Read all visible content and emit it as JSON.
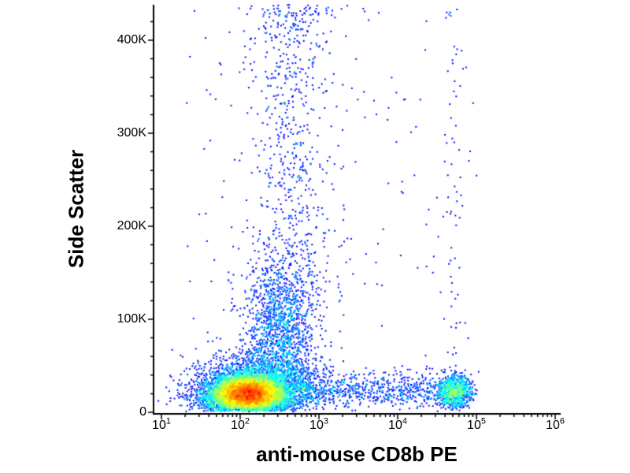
{
  "chart_data": {
    "type": "scatter",
    "subtype": "flow-cytometry-pseudocolor-density-dot-plot",
    "title": "",
    "xlabel": "anti-mouse CD8b PE",
    "ylabel": "Side Scatter",
    "colormap": "jet-density (blue=low, green, yellow, red=high)",
    "background_color": "#ffffff",
    "axis_color": "#000000",
    "x_axis": {
      "scale": "log10",
      "min_exponent": 1,
      "max_exponent": 6,
      "tick_base": "10",
      "tick_exponents": [
        "1",
        "2",
        "3",
        "4",
        "5",
        "6"
      ]
    },
    "y_axis": {
      "scale": "linear",
      "min": 0,
      "max": 445000,
      "minor_step": 20000,
      "tick_labels": [
        "0",
        "100K",
        "200K",
        "300K",
        "400K"
      ],
      "tick_values": [
        0,
        100000,
        200000,
        300000,
        400000
      ]
    },
    "populations": [
      {
        "name": "negative-lymphocyte-core",
        "count": 9000,
        "x": {
          "dist": "gauss",
          "log10_mean": 2.1,
          "log10_sd": 0.21
        },
        "y": {
          "dist": "gauss",
          "mean": 20000,
          "sd": 9000,
          "min": 1500,
          "max": 75000
        }
      },
      {
        "name": "negative-halo",
        "count": 2600,
        "x": {
          "dist": "gauss",
          "log10_mean": 2.22,
          "log10_sd": 0.4
        },
        "y": {
          "dist": "gauss",
          "mean": 26000,
          "sd": 17000,
          "min": 800,
          "max": 95000
        }
      },
      {
        "name": "left-debris",
        "count": 260,
        "x": {
          "dist": "gauss",
          "log10_mean": 1.72,
          "log10_sd": 0.26
        },
        "y": {
          "dist": "gauss",
          "mean": 14000,
          "sd": 9000,
          "min": 800,
          "max": 60000
        }
      },
      {
        "name": "monocyte-cloud",
        "count": 1500,
        "x": {
          "dist": "gauss",
          "log10_mean": 2.5,
          "log10_sd": 0.23
        },
        "y": {
          "dist": "gauss",
          "mean": 85000,
          "sd": 40000,
          "min": 35000,
          "max": 230000
        }
      },
      {
        "name": "vertical-plume",
        "count": 650,
        "x": {
          "dist": "gauss",
          "log10_mean": 2.65,
          "log10_sd": 0.26
        },
        "y": {
          "dist": "uniform",
          "min": 120000,
          "max": 445000
        }
      },
      {
        "name": "low-band-right",
        "count": 650,
        "x": {
          "dist": "uniform",
          "log10_min": 2.6,
          "log10_max": 4.45
        },
        "y": {
          "dist": "gauss",
          "mean": 24000,
          "sd": 10000,
          "min": 1500,
          "max": 60000
        }
      },
      {
        "name": "cd8b-positive",
        "count": 950,
        "x": {
          "dist": "gauss",
          "log10_mean": 4.72,
          "log10_sd": 0.12
        },
        "y": {
          "dist": "gauss",
          "mean": 22000,
          "sd": 9000,
          "min": 2000,
          "max": 70000
        }
      },
      {
        "name": "cd8b-positive-smear",
        "count": 60,
        "x": {
          "dist": "gauss",
          "log10_mean": 4.7,
          "log10_sd": 0.1
        },
        "y": {
          "dist": "uniform",
          "min": 60000,
          "max": 445000
        }
      },
      {
        "name": "top-edge-events",
        "count": 50,
        "x": {
          "dist": "gauss",
          "log10_mean": 2.9,
          "log10_sd": 0.35
        },
        "y": {
          "dist": "uniform",
          "min": 426000,
          "max": 445000
        }
      },
      {
        "name": "sparse-background",
        "count": 170,
        "x": {
          "dist": "uniform",
          "log10_min": 1.3,
          "log10_max": 5.05
        },
        "y": {
          "dist": "uniform",
          "min": 1000,
          "max": 440000
        }
      }
    ]
  }
}
